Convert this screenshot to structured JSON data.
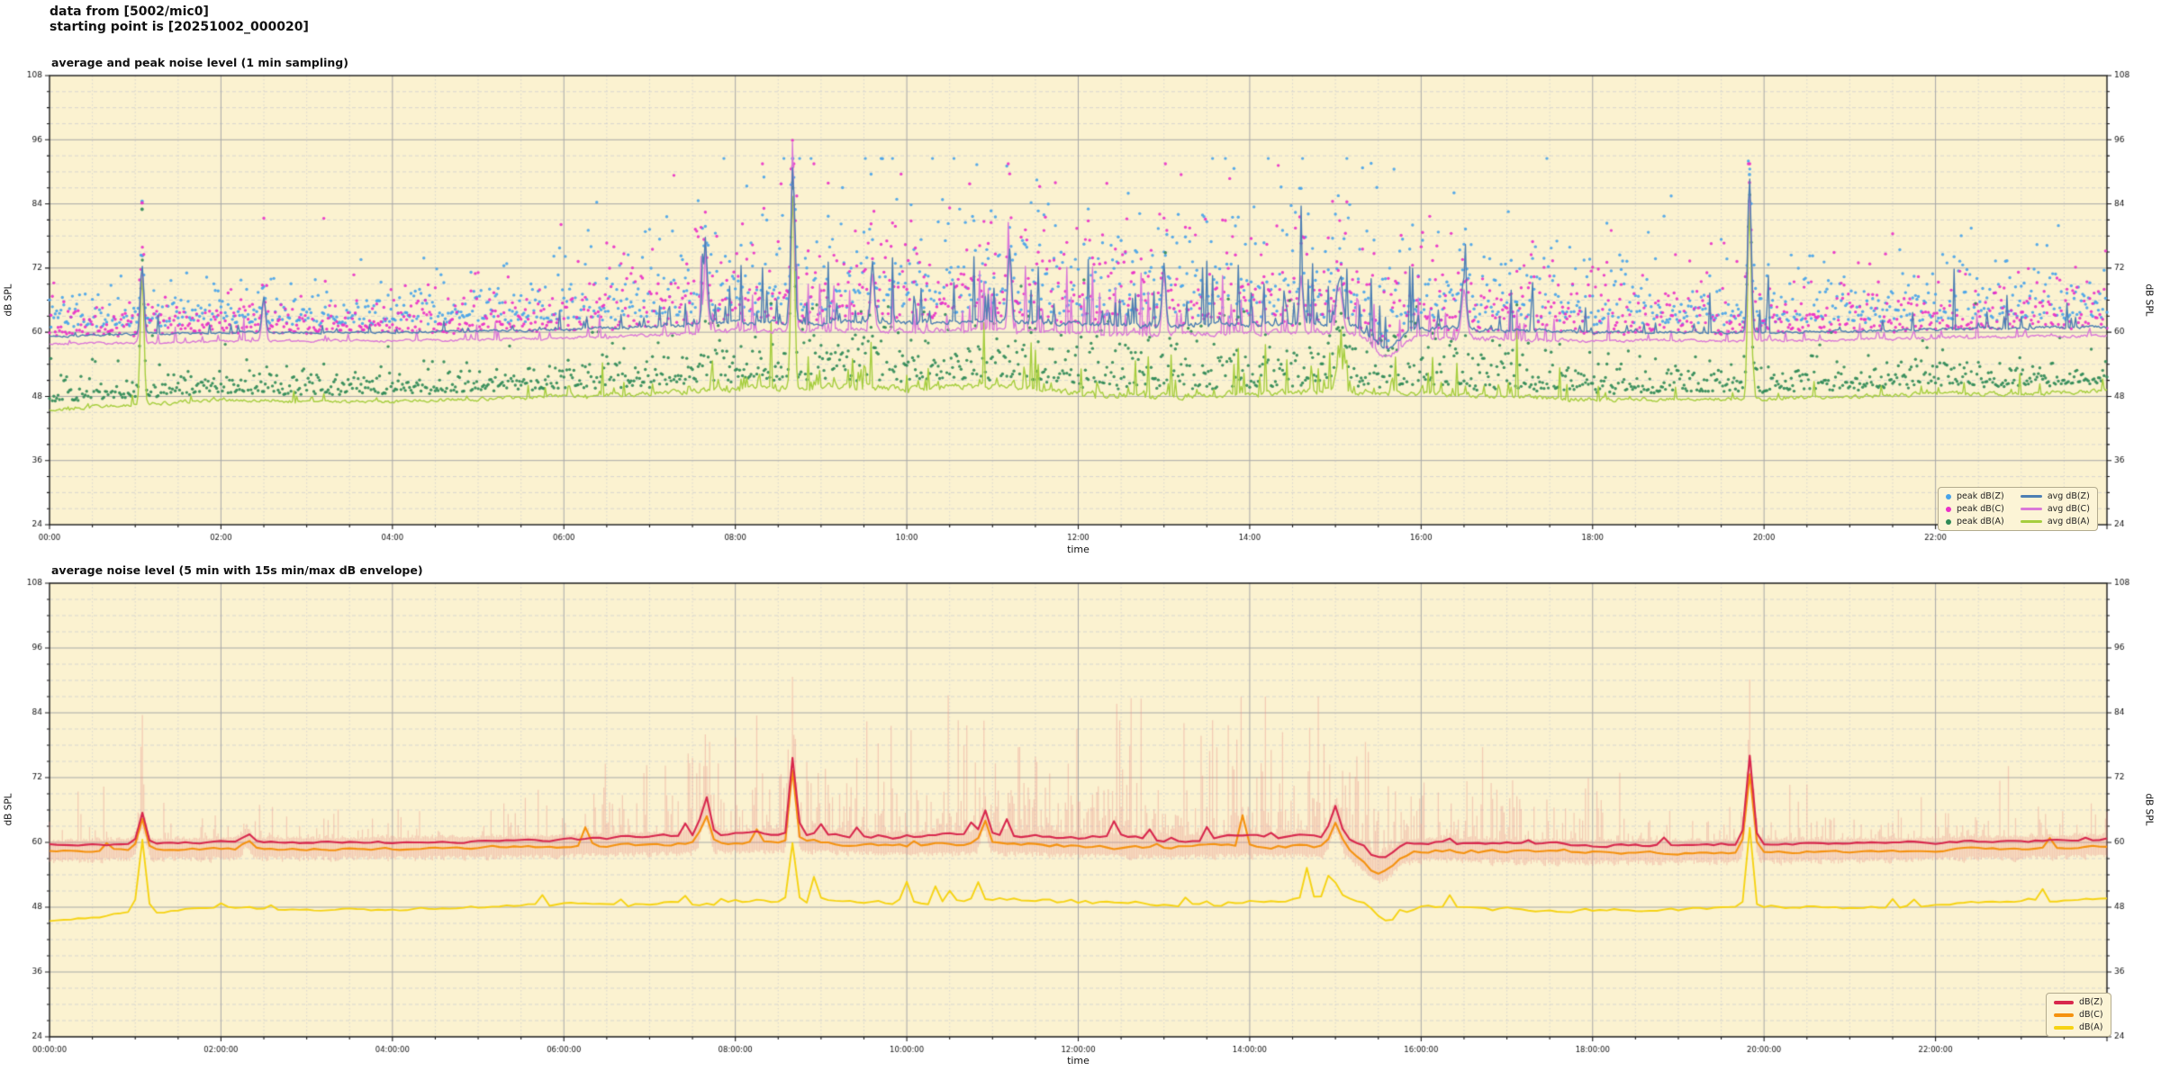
{
  "header": {
    "line1": "data from [5002/mic0]",
    "line2": "starting point is [20251002_000020]"
  },
  "colors": {
    "page_bg": "#ffffff",
    "plot_bg": "#fbf2d0",
    "grid_major": "#a8a8a8",
    "grid_minor": "#cfcfcf",
    "spine": "#1a1a1a",
    "text": "#111111",
    "legend_bg": "#fcf4d6",
    "legend_border": "#b3ab8e"
  },
  "chart_data": [
    {
      "type": "line+scatter",
      "title": "average and peak noise level (1 min sampling)",
      "xlabel": "time",
      "ylabel": "dB SPL",
      "ylabel_right": "dB SPL",
      "ylim": [
        24,
        108
      ],
      "xlim_hours": [
        0,
        24
      ],
      "yticks": [
        24,
        36,
        48,
        60,
        72,
        84,
        96,
        108
      ],
      "y_minor_step": 3,
      "xtick_hours": [
        0,
        2,
        4,
        6,
        8,
        10,
        12,
        14,
        16,
        18,
        20,
        22
      ],
      "xtick_labels": [
        "00:00",
        "02:00",
        "04:00",
        "06:00",
        "08:00",
        "10:00",
        "12:00",
        "14:00",
        "16:00",
        "18:00",
        "20:00",
        "22:00"
      ],
      "x_minor_step_hours": 0.5,
      "grid": "major solid, minor dashed",
      "legend_position": "lower right",
      "sampling_minutes": 1,
      "activity_hourly": [
        0.15,
        0.2,
        0.15,
        0.15,
        0.15,
        0.2,
        0.3,
        0.55,
        0.85,
        1,
        1,
        1,
        1,
        0.95,
        1,
        1,
        0.9,
        0.75,
        0.45,
        0.3,
        0.3,
        0.3,
        0.35,
        0.35,
        0.35
      ],
      "series": [
        {
          "name": "avg dB(Z)",
          "color": "#4d7fb3",
          "width": 1.4,
          "anchors_hourly": [
            59.3,
            59.6,
            59.9,
            60.0,
            60.0,
            60.2,
            60.5,
            61.0,
            61.8,
            62.0,
            61.8,
            62.2,
            61.5,
            61.2,
            61.5,
            61.5,
            60.8,
            60.3,
            60.0,
            60.0,
            60.0,
            60.2,
            60.5,
            60.8,
            61.0
          ],
          "noise": [
            0.3,
            0.9
          ],
          "spike_p": [
            0.03,
            0.18
          ],
          "spike": [
            0.6,
            4.2
          ],
          "events": [
            [
              1.08,
              72.5,
              3
            ],
            [
              2.5,
              66.5,
              3
            ],
            [
              7.65,
              75,
              4
            ],
            [
              8.67,
              91,
              3
            ],
            [
              9.6,
              73,
              3
            ],
            [
              11.2,
              75.5,
              3
            ],
            [
              13.0,
              73,
              3
            ],
            [
              14.6,
              72,
              3
            ],
            [
              15.05,
              70,
              5
            ],
            [
              15.6,
              57,
              22
            ],
            [
              16.5,
              70,
              4
            ],
            [
              19.83,
              89,
              3
            ]
          ]
        },
        {
          "name": "avg dB(C)",
          "color": "#da78d8",
          "width": 1.4,
          "anchors_hourly": [
            57.8,
            58.0,
            58.3,
            58.4,
            58.4,
            58.6,
            58.9,
            59.4,
            60.2,
            60.4,
            60.2,
            60.6,
            59.9,
            59.6,
            59.9,
            59.9,
            59.2,
            58.7,
            58.4,
            58.4,
            58.4,
            58.6,
            58.9,
            59.2,
            59.4
          ],
          "noise": [
            0.3,
            0.9
          ],
          "spike_p": [
            0.03,
            0.16
          ],
          "spike": [
            0.5,
            3.8
          ],
          "events": [
            [
              1.08,
              72,
              3
            ],
            [
              2.5,
              66,
              3
            ],
            [
              7.65,
              70,
              4
            ],
            [
              8.67,
              90,
              3
            ],
            [
              9.6,
              71,
              3
            ],
            [
              11.2,
              73,
              3
            ],
            [
              13.0,
              71,
              3
            ],
            [
              14.6,
              70,
              3
            ],
            [
              15.05,
              68,
              5
            ],
            [
              15.6,
              55.5,
              22
            ],
            [
              16.5,
              68,
              4
            ],
            [
              19.83,
              87.5,
              3
            ]
          ]
        },
        {
          "name": "avg dB(A)",
          "color": "#a6ce3f",
          "width": 1.4,
          "anchors_hourly": [
            45.5,
            46.5,
            47.3,
            47.0,
            47.0,
            47.5,
            48.0,
            48.5,
            49.5,
            50.0,
            49.5,
            50.0,
            48.5,
            48.0,
            48.5,
            49.0,
            48.5,
            48.0,
            47.5,
            47.5,
            47.5,
            48.0,
            48.5,
            48.5,
            49.0
          ],
          "noise": [
            0.5,
            1.1
          ],
          "spike_p": [
            0.03,
            0.15
          ],
          "spike": [
            0.5,
            2.6
          ],
          "events": [
            [
              1.08,
              71,
              3
            ],
            [
              8.67,
              86,
              3
            ],
            [
              15.05,
              55,
              6
            ],
            [
              19.83,
              84,
              3
            ]
          ]
        }
      ],
      "scatter_series": [
        {
          "name": "peak dB(Z)",
          "color": "#47a3ea",
          "base_offset_db": 1.6,
          "tail_db": [
            2.2,
            9.0
          ],
          "clamp_db": 92.5,
          "events": [
            [
              1.08,
              84.5
            ],
            [
              8.67,
              92.5
            ],
            [
              19.83,
              89.5
            ]
          ]
        },
        {
          "name": "peak dB(C)",
          "color": "#ea2fc8",
          "base_offset_db": 1.4,
          "tail_db": [
            2.0,
            8.5
          ],
          "clamp_db": 91.5,
          "events": [
            [
              1.08,
              84.2
            ],
            [
              8.67,
              91.0
            ],
            [
              19.83,
              88.0
            ]
          ]
        },
        {
          "name": "peak dB(A)",
          "color": "#2f8a57",
          "base_offset_db": 1.4,
          "tail_db": [
            1.5,
            4.5
          ],
          "clamp_db": 88.0,
          "events": [
            [
              1.08,
              83.0
            ],
            [
              8.67,
              87.0
            ],
            [
              19.83,
              84.5
            ]
          ]
        }
      ]
    },
    {
      "type": "line+envelope",
      "title": "average noise level (5 min with 15s min/max dB envelope)",
      "xlabel": "time",
      "ylabel": "dB SPL",
      "ylabel_right": "dB SPL",
      "ylim": [
        24,
        108
      ],
      "xlim_hours": [
        0,
        24
      ],
      "yticks": [
        24,
        36,
        48,
        60,
        72,
        84,
        96,
        108
      ],
      "y_minor_step": 3,
      "xtick_hours": [
        0,
        2,
        4,
        6,
        8,
        10,
        12,
        14,
        16,
        18,
        20,
        22
      ],
      "xtick_labels": [
        "00:00:00",
        "02:00:00",
        "04:00:00",
        "06:00:00",
        "08:00:00",
        "10:00:00",
        "12:00:00",
        "14:00:00",
        "16:00:00",
        "18:00:00",
        "20:00:00",
        "22:00:00"
      ],
      "x_minor_step_hours": 0.5,
      "grid": "major solid, minor dashed",
      "legend_position": "lower right",
      "sampling_minutes": 5,
      "activity_hourly": [
        0.15,
        0.2,
        0.15,
        0.15,
        0.15,
        0.2,
        0.3,
        0.55,
        0.85,
        1,
        1,
        1,
        1,
        0.95,
        1,
        1,
        0.9,
        0.75,
        0.45,
        0.3,
        0.3,
        0.3,
        0.35,
        0.35,
        0.35
      ],
      "envelope": {
        "desc": "15s min/max dB envelope",
        "color": "rgba(233,150,140,0.42)",
        "events": [
          [
            1.08,
            84,
            4
          ],
          [
            7.65,
            80,
            5
          ],
          [
            8.67,
            91.5,
            3
          ],
          [
            19.83,
            91,
            3
          ]
        ]
      },
      "series": [
        {
          "name": "dB(Z)",
          "color": "#d8274d",
          "width": 2.1,
          "anchors_hourly": [
            59.5,
            59.8,
            60.0,
            60.0,
            60.0,
            60.2,
            60.5,
            61.0,
            61.5,
            61.5,
            61.0,
            61.5,
            61.0,
            60.5,
            61.0,
            61.0,
            60.0,
            59.8,
            59.5,
            59.5,
            59.8,
            59.8,
            60.0,
            60.3,
            60.6
          ],
          "noise": [
            0.35,
            0.8
          ],
          "spike_p": [
            0.02,
            0.1
          ],
          "spike": [
            0.3,
            1.4
          ],
          "events": [
            [
              1.08,
              65.5,
              6
            ],
            [
              2.3,
              62,
              5
            ],
            [
              7.65,
              68.5,
              7
            ],
            [
              8.67,
              75.5,
              5
            ],
            [
              10.9,
              66,
              5
            ],
            [
              15.0,
              66.5,
              8
            ],
            [
              15.5,
              57,
              25
            ],
            [
              19.83,
              75.5,
              6
            ]
          ]
        },
        {
          "name": "dB(C)",
          "color": "#f5920f",
          "width": 2.1,
          "anchors_hourly": [
            58.3,
            58.6,
            58.8,
            58.8,
            58.8,
            59.0,
            59.2,
            59.6,
            60.0,
            60.0,
            59.5,
            59.8,
            59.3,
            59.0,
            59.3,
            59.3,
            58.5,
            58.2,
            58.0,
            58.0,
            58.2,
            58.3,
            58.6,
            58.9,
            59.2
          ],
          "noise": [
            0.35,
            0.8
          ],
          "spike_p": [
            0.02,
            0.1
          ],
          "spike": [
            0.3,
            1.3
          ],
          "events": [
            [
              1.08,
              64.5,
              6
            ],
            [
              2.3,
              61,
              5
            ],
            [
              7.65,
              65.5,
              7
            ],
            [
              8.67,
              73.5,
              5
            ],
            [
              10.9,
              64,
              5
            ],
            [
              15.0,
              64,
              8
            ],
            [
              15.5,
              54.5,
              25
            ],
            [
              19.83,
              72.5,
              6
            ]
          ]
        },
        {
          "name": "dB(A)",
          "color": "#f6d313",
          "width": 1.9,
          "anchors_hourly": [
            45.5,
            47.0,
            48.0,
            47.5,
            47.5,
            48.0,
            48.5,
            48.5,
            49.0,
            49.5,
            49.0,
            49.5,
            49.0,
            48.5,
            49.0,
            49.5,
            48.0,
            47.5,
            47.5,
            47.5,
            48.0,
            48.0,
            48.5,
            49.0,
            49.8
          ],
          "noise": [
            0.4,
            0.9
          ],
          "spike_p": [
            0.02,
            0.08
          ],
          "spike": [
            0.3,
            1.2
          ],
          "events": [
            [
              1.08,
              60.5,
              6
            ],
            [
              8.67,
              60,
              5
            ],
            [
              15.0,
              52,
              8
            ],
            [
              15.6,
              45,
              20
            ],
            [
              19.83,
              63,
              5
            ]
          ]
        }
      ]
    }
  ]
}
